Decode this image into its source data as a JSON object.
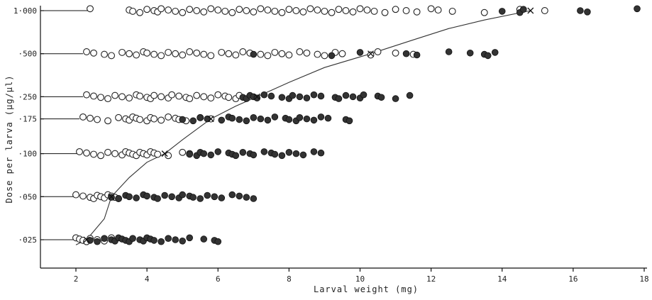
{
  "chart_data": {
    "type": "scatter",
    "title": "",
    "xlabel": "Larval  weight  (mg)",
    "ylabel": "Dose  per  larva  (µg/µl)",
    "xlim": [
      1,
      18
    ],
    "x_ticks": [
      2,
      4,
      6,
      8,
      10,
      12,
      14,
      16,
      18
    ],
    "dose_levels": [
      {
        "label": "·025",
        "value": 0.025
      },
      {
        "label": "·050",
        "value": 0.05
      },
      {
        "label": "·100",
        "value": 0.1
      },
      {
        "label": "·175",
        "value": 0.175
      },
      {
        "label": "·250",
        "value": 0.25
      },
      {
        "label": "·500",
        "value": 0.5
      },
      {
        "label": "1·000",
        "value": 1.0
      }
    ],
    "y_scale": "log",
    "series": [
      {
        "marker": "open-circle",
        "points": [
          {
            "dose": 0.025,
            "x": [
              2.0,
              2.1,
              2.2,
              2.3,
              2.4,
              2.6,
              2.8,
              3.0
            ]
          },
          {
            "dose": 0.05,
            "x": [
              2.0,
              2.2,
              2.4,
              2.5,
              2.6,
              2.7,
              2.8,
              2.9,
              3.0,
              3.1,
              3.2
            ]
          },
          {
            "dose": 0.1,
            "x": [
              2.1,
              2.3,
              2.5,
              2.7,
              2.9,
              3.1,
              3.3,
              3.4,
              3.5,
              3.6,
              3.7,
              3.8,
              3.9,
              4.0,
              4.1,
              4.2,
              4.3,
              4.6,
              5.0,
              5.2
            ]
          },
          {
            "dose": 0.175,
            "x": [
              2.2,
              2.4,
              2.6,
              2.9,
              3.2,
              3.4,
              3.5,
              3.6,
              3.7,
              3.8,
              4.0,
              4.1,
              4.2,
              4.4,
              4.6,
              4.8,
              4.9,
              5.1,
              5.5,
              5.8
            ]
          },
          {
            "dose": 0.25,
            "x": [
              2.3,
              2.5,
              2.7,
              2.9,
              3.1,
              3.3,
              3.5,
              3.7,
              3.8,
              4.0,
              4.1,
              4.2,
              4.4,
              4.6,
              4.7,
              4.9,
              5.1,
              5.2,
              5.4,
              5.6,
              5.8,
              6.0,
              6.2,
              6.3,
              6.5,
              6.6
            ]
          },
          {
            "dose": 0.5,
            "x": [
              2.3,
              2.5,
              2.8,
              3.0,
              3.3,
              3.5,
              3.7,
              3.9,
              4.0,
              4.2,
              4.4,
              4.6,
              4.8,
              5.0,
              5.2,
              5.4,
              5.6,
              5.8,
              6.1,
              6.3,
              6.5,
              6.7,
              6.9,
              7.2,
              7.4,
              7.6,
              7.8,
              8.0,
              8.3,
              8.5,
              8.8,
              9.0,
              9.3,
              9.5,
              10.3,
              10.5,
              11.0,
              11.5
            ]
          },
          {
            "dose": 1.0,
            "x": [
              2.4,
              3.5,
              3.6,
              3.8,
              4.0,
              4.2,
              4.3,
              4.4,
              4.6,
              4.8,
              5.0,
              5.2,
              5.4,
              5.6,
              5.8,
              6.0,
              6.2,
              6.4,
              6.6,
              6.8,
              7.0,
              7.2,
              7.4,
              7.6,
              7.8,
              8.0,
              8.2,
              8.4,
              8.6,
              8.8,
              9.0,
              9.2,
              9.4,
              9.6,
              9.8,
              10.0,
              10.2,
              10.4,
              10.7,
              11.0,
              11.3,
              11.6,
              12.0,
              12.2,
              12.6,
              13.5,
              14.5,
              15.2
            ]
          }
        ]
      },
      {
        "marker": "filled-circle",
        "points": [
          {
            "dose": 0.025,
            "x": [
              2.4,
              2.6,
              2.8,
              3.0,
              3.1,
              3.2,
              3.3,
              3.4,
              3.5,
              3.6,
              3.8,
              3.9,
              4.0,
              4.1,
              4.2,
              4.4,
              4.6,
              4.8,
              5.0,
              5.2,
              5.6,
              5.9,
              6.0
            ]
          },
          {
            "dose": 0.05,
            "x": [
              3.0,
              3.2,
              3.4,
              3.5,
              3.7,
              3.9,
              4.0,
              4.2,
              4.3,
              4.5,
              4.7,
              4.9,
              5.0,
              5.2,
              5.3,
              5.5,
              5.7,
              5.9,
              6.1,
              6.4,
              6.6,
              6.8,
              7.0
            ]
          },
          {
            "dose": 0.1,
            "x": [
              5.2,
              5.4,
              5.5,
              5.6,
              5.8,
              6.0,
              6.3,
              6.4,
              6.5,
              6.7,
              6.9,
              7.0,
              7.3,
              7.5,
              7.6,
              7.8,
              8.0,
              8.2,
              8.4,
              8.7,
              8.9
            ]
          },
          {
            "dose": 0.175,
            "x": [
              5.0,
              5.3,
              5.5,
              5.7,
              6.1,
              6.3,
              6.4,
              6.6,
              6.8,
              7.0,
              7.2,
              7.4,
              7.6,
              7.9,
              8.0,
              8.2,
              8.3,
              8.5,
              8.7,
              8.9,
              9.1,
              9.6,
              9.7
            ]
          },
          {
            "dose": 0.25,
            "x": [
              6.7,
              6.8,
              6.9,
              7.0,
              7.1,
              7.3,
              7.5,
              7.8,
              8.0,
              8.1,
              8.3,
              8.5,
              8.7,
              8.9,
              9.3,
              9.4,
              9.6,
              9.8,
              10.0,
              10.1,
              10.5,
              10.6,
              11.0,
              11.4
            ]
          },
          {
            "dose": 0.5,
            "x": [
              7.0,
              9.2,
              10.0,
              11.3,
              11.6,
              12.5,
              13.1,
              13.5,
              13.6,
              13.8
            ]
          },
          {
            "dose": 1.0,
            "x": [
              14.0,
              14.5,
              14.6,
              16.2,
              16.4,
              17.8
            ]
          }
        ]
      },
      {
        "marker": "cross",
        "points": [
          {
            "dose": 0.025,
            "x": [
              2.3
            ]
          },
          {
            "dose": 0.05,
            "x": [
              3.0
            ]
          },
          {
            "dose": 0.1,
            "x": [
              4.5
            ]
          },
          {
            "dose": 0.175,
            "x": [
              5.8
            ]
          },
          {
            "dose": 0.25,
            "x": [
              7.1
            ]
          },
          {
            "dose": 0.5,
            "x": [
              10.3
            ]
          },
          {
            "dose": 1.0,
            "x": [
              14.8
            ]
          }
        ]
      }
    ],
    "fitted_curve": [
      [
        2.0,
        0.023
      ],
      [
        2.3,
        0.025
      ],
      [
        2.8,
        0.035
      ],
      [
        3.0,
        0.05
      ],
      [
        3.5,
        0.068
      ],
      [
        4.0,
        0.087
      ],
      [
        4.5,
        0.1
      ],
      [
        5.0,
        0.125
      ],
      [
        5.8,
        0.175
      ],
      [
        6.5,
        0.215
      ],
      [
        7.1,
        0.25
      ],
      [
        8.0,
        0.315
      ],
      [
        9.0,
        0.4
      ],
      [
        10.3,
        0.5
      ],
      [
        11.5,
        0.625
      ],
      [
        12.5,
        0.75
      ],
      [
        13.5,
        0.86
      ],
      [
        14.8,
        1.0
      ]
    ],
    "grid": false,
    "legend": "none"
  }
}
